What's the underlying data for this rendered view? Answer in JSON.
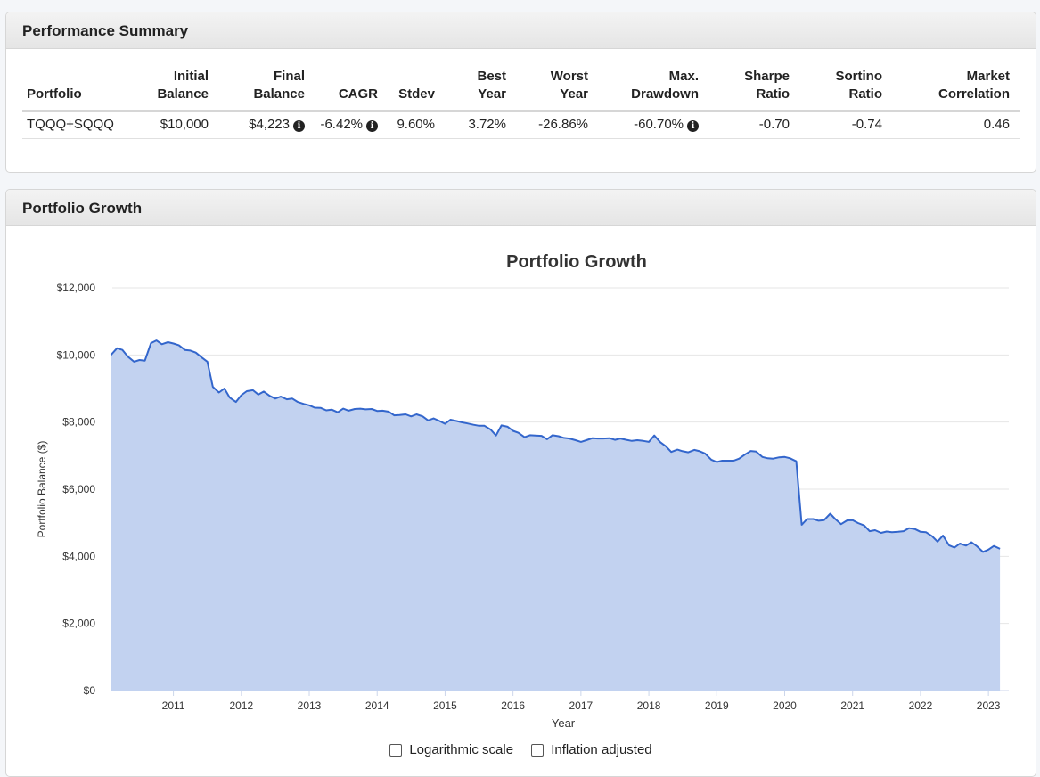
{
  "summary": {
    "title": "Performance Summary",
    "headers": {
      "portfolio": "Portfolio",
      "initial": [
        "Initial",
        "Balance"
      ],
      "final": [
        "Final",
        "Balance"
      ],
      "cagr": "CAGR",
      "stdev": "Stdev",
      "best": [
        "Best",
        "Year"
      ],
      "worst": [
        "Worst",
        "Year"
      ],
      "drawdown": [
        "Max.",
        "Drawdown"
      ],
      "sharpe": [
        "Sharpe",
        "Ratio"
      ],
      "sortino": [
        "Sortino",
        "Ratio"
      ],
      "correlation": [
        "Market",
        "Correlation"
      ]
    },
    "row": {
      "portfolio": "TQQQ+SQQQ",
      "initial": "$10,000",
      "final": "$4,223",
      "cagr": "-6.42%",
      "stdev": "9.60%",
      "best": "3.72%",
      "worst": "-26.86%",
      "drawdown": "-60.70%",
      "sharpe": "-0.70",
      "sortino": "-0.74",
      "correlation": "0.46"
    },
    "info_icon": "info-circle-icon"
  },
  "growth": {
    "title": "Portfolio Growth",
    "controls": {
      "log_label": "Logarithmic scale",
      "inflation_label": "Inflation adjusted"
    }
  },
  "chart_data": {
    "type": "area",
    "title": "Portfolio Growth",
    "xlabel": "Year",
    "ylabel": "Portfolio Balance ($)",
    "ylim": [
      0,
      12000
    ],
    "xlim": [
      2010.1,
      2023.3
    ],
    "y_ticks": [
      0,
      2000,
      4000,
      6000,
      8000,
      10000,
      12000
    ],
    "y_tick_labels": [
      "$0",
      "$2,000",
      "$4,000",
      "$6,000",
      "$8,000",
      "$10,000",
      "$12,000"
    ],
    "x_ticks": [
      2011,
      2012,
      2013,
      2014,
      2015,
      2016,
      2017,
      2018,
      2019,
      2020,
      2021,
      2022,
      2023
    ],
    "x_tick_labels": [
      "2011",
      "2012",
      "2013",
      "2014",
      "2015",
      "2016",
      "2017",
      "2018",
      "2019",
      "2020",
      "2021",
      "2022",
      "2023"
    ],
    "grid": true,
    "legend": "none",
    "line_color": "#3366cc",
    "fill_color": "#c2d2f0",
    "series": [
      {
        "x": [
          2010.08,
          2010.17,
          2010.25,
          2010.33,
          2010.42,
          2010.5,
          2010.58,
          2010.67,
          2010.75,
          2010.83,
          2010.92,
          2011.0,
          2011.08,
          2011.17,
          2011.25,
          2011.33,
          2011.42,
          2011.5,
          2011.58,
          2011.67,
          2011.75,
          2011.83,
          2011.92,
          2012.0,
          2012.08,
          2012.17,
          2012.25,
          2012.33,
          2012.42,
          2012.5,
          2012.58,
          2012.67,
          2012.75,
          2012.83,
          2012.92,
          2013.0,
          2013.08,
          2013.17,
          2013.25,
          2013.33,
          2013.42,
          2013.5,
          2013.58,
          2013.67,
          2013.75,
          2013.83,
          2013.92,
          2014.0,
          2014.08,
          2014.17,
          2014.25,
          2014.33,
          2014.42,
          2014.5,
          2014.58,
          2014.67,
          2014.75,
          2014.83,
          2014.92,
          2015.0,
          2015.08,
          2015.17,
          2015.25,
          2015.33,
          2015.42,
          2015.5,
          2015.58,
          2015.67,
          2015.75,
          2015.83,
          2015.92,
          2016.0,
          2016.08,
          2016.17,
          2016.25,
          2016.33,
          2016.42,
          2016.5,
          2016.58,
          2016.67,
          2016.75,
          2016.83,
          2016.92,
          2017.0,
          2017.08,
          2017.17,
          2017.25,
          2017.33,
          2017.42,
          2017.5,
          2017.58,
          2017.67,
          2017.75,
          2017.83,
          2017.92,
          2018.0,
          2018.08,
          2018.17,
          2018.25,
          2018.33,
          2018.42,
          2018.5,
          2018.58,
          2018.67,
          2018.75,
          2018.83,
          2018.92,
          2019.0,
          2019.08,
          2019.17,
          2019.25,
          2019.33,
          2019.42,
          2019.5,
          2019.58,
          2019.67,
          2019.75,
          2019.83,
          2019.92,
          2020.0,
          2020.08,
          2020.17,
          2020.25,
          2020.33,
          2020.42,
          2020.5,
          2020.58,
          2020.67,
          2020.75,
          2020.83,
          2020.92,
          2021.0,
          2021.08,
          2021.17,
          2021.25,
          2021.33,
          2021.42,
          2021.5,
          2021.58,
          2021.67,
          2021.75,
          2021.83,
          2021.92,
          2022.0,
          2022.08,
          2022.17,
          2022.25,
          2022.33,
          2022.42,
          2022.5,
          2022.58,
          2022.67,
          2022.75,
          2022.83,
          2022.92,
          2023.0,
          2023.08,
          2023.17
        ],
        "values": [
          10000,
          10200,
          10150,
          9950,
          9800,
          9850,
          9830,
          10350,
          10430,
          10320,
          10380,
          10340,
          10290,
          10150,
          10130,
          10070,
          9920,
          9800,
          9050,
          8880,
          9000,
          8730,
          8600,
          8800,
          8920,
          8950,
          8820,
          8910,
          8780,
          8700,
          8760,
          8680,
          8700,
          8600,
          8540,
          8500,
          8430,
          8420,
          8350,
          8370,
          8290,
          8400,
          8340,
          8390,
          8400,
          8380,
          8390,
          8330,
          8340,
          8310,
          8200,
          8210,
          8230,
          8170,
          8230,
          8170,
          8050,
          8110,
          8030,
          7950,
          8070,
          8030,
          7990,
          7960,
          7920,
          7890,
          7890,
          7780,
          7600,
          7900,
          7860,
          7740,
          7680,
          7550,
          7610,
          7600,
          7590,
          7490,
          7610,
          7580,
          7530,
          7510,
          7460,
          7410,
          7460,
          7520,
          7510,
          7510,
          7520,
          7470,
          7510,
          7470,
          7440,
          7460,
          7440,
          7410,
          7600,
          7400,
          7280,
          7110,
          7180,
          7130,
          7100,
          7170,
          7130,
          7060,
          6880,
          6810,
          6850,
          6850,
          6850,
          6910,
          7040,
          7140,
          7120,
          6960,
          6920,
          6910,
          6950,
          6960,
          6920,
          6830,
          4940,
          5110,
          5110,
          5060,
          5080,
          5270,
          5100,
          4960,
          5070,
          5080,
          4990,
          4920,
          4750,
          4780,
          4700,
          4740,
          4720,
          4730,
          4750,
          4840,
          4810,
          4730,
          4720,
          4600,
          4440,
          4620,
          4330,
          4260,
          4380,
          4320,
          4420,
          4300,
          4130,
          4200,
          4310,
          4223
        ]
      }
    ]
  }
}
